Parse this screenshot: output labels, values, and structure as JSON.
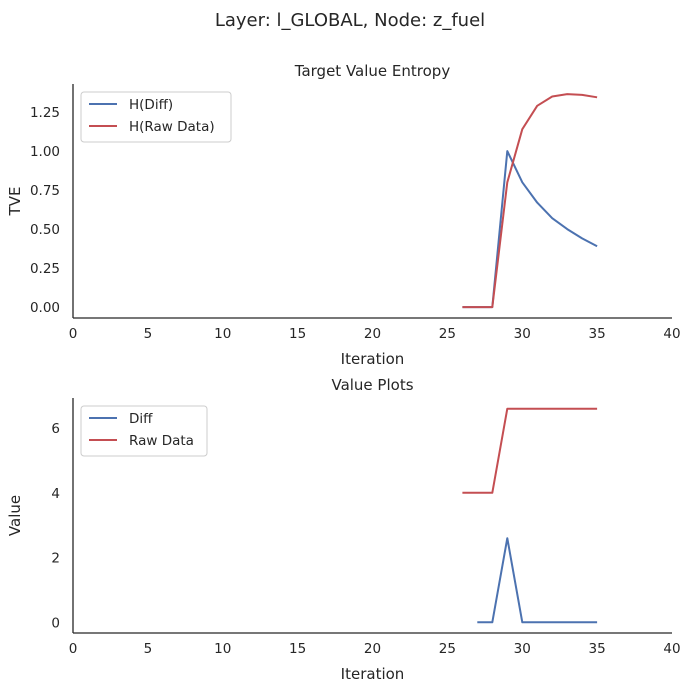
{
  "suptitle": "Layer: l_GLOBAL, Node: z_fuel",
  "colors": {
    "blue": "#4c72b0",
    "red": "#c44e52"
  },
  "chart_data": [
    {
      "type": "line",
      "title": "Target Value Entropy",
      "xlabel": "Iteration",
      "ylabel": "TVE",
      "xlim": [
        0,
        40
      ],
      "ylim": [
        -0.07,
        1.43
      ],
      "xticks": [
        0,
        5,
        10,
        15,
        20,
        25,
        30,
        35,
        40
      ],
      "yticks": [
        0,
        0.25,
        0.5,
        0.75,
        1.0,
        1.25
      ],
      "ytick_labels": [
        "0.00",
        "0.25",
        "0.50",
        "0.75",
        "1.00",
        "1.25"
      ],
      "legend_position": "top-left",
      "grid": false,
      "series": [
        {
          "name": "H(Diff)",
          "color": "#4c72b0",
          "x": [
            26,
            27,
            28,
            29,
            30,
            31,
            32,
            33,
            34,
            35
          ],
          "y": [
            0,
            0,
            0,
            1.0,
            0.8,
            0.67,
            0.57,
            0.5,
            0.44,
            0.39
          ]
        },
        {
          "name": "H(Raw Data)",
          "color": "#c44e52",
          "x": [
            26,
            27,
            28,
            29,
            30,
            31,
            32,
            33,
            34,
            35
          ],
          "y": [
            0,
            0,
            0,
            0.8,
            1.14,
            1.29,
            1.35,
            1.365,
            1.36,
            1.345
          ]
        }
      ]
    },
    {
      "type": "line",
      "title": "Value Plots",
      "xlabel": "Iteration",
      "ylabel": "Value",
      "xlim": [
        0,
        40
      ],
      "ylim": [
        -0.33,
        6.93
      ],
      "xticks": [
        0,
        5,
        10,
        15,
        20,
        25,
        30,
        35,
        40
      ],
      "yticks": [
        0,
        2,
        4,
        6
      ],
      "ytick_labels": [
        "0",
        "2",
        "4",
        "6"
      ],
      "legend_position": "top-left",
      "grid": false,
      "series": [
        {
          "name": "Diff",
          "color": "#4c72b0",
          "x": [
            27,
            28,
            29,
            30,
            31,
            32,
            33,
            34,
            35
          ],
          "y": [
            0,
            0,
            2.6,
            0,
            0,
            0,
            0,
            0,
            0
          ]
        },
        {
          "name": "Raw Data",
          "color": "#c44e52",
          "x": [
            26,
            27,
            28,
            29,
            30,
            31,
            32,
            33,
            34,
            35
          ],
          "y": [
            4,
            4,
            4,
            6.6,
            6.6,
            6.6,
            6.6,
            6.6,
            6.6,
            6.6
          ]
        }
      ]
    }
  ]
}
